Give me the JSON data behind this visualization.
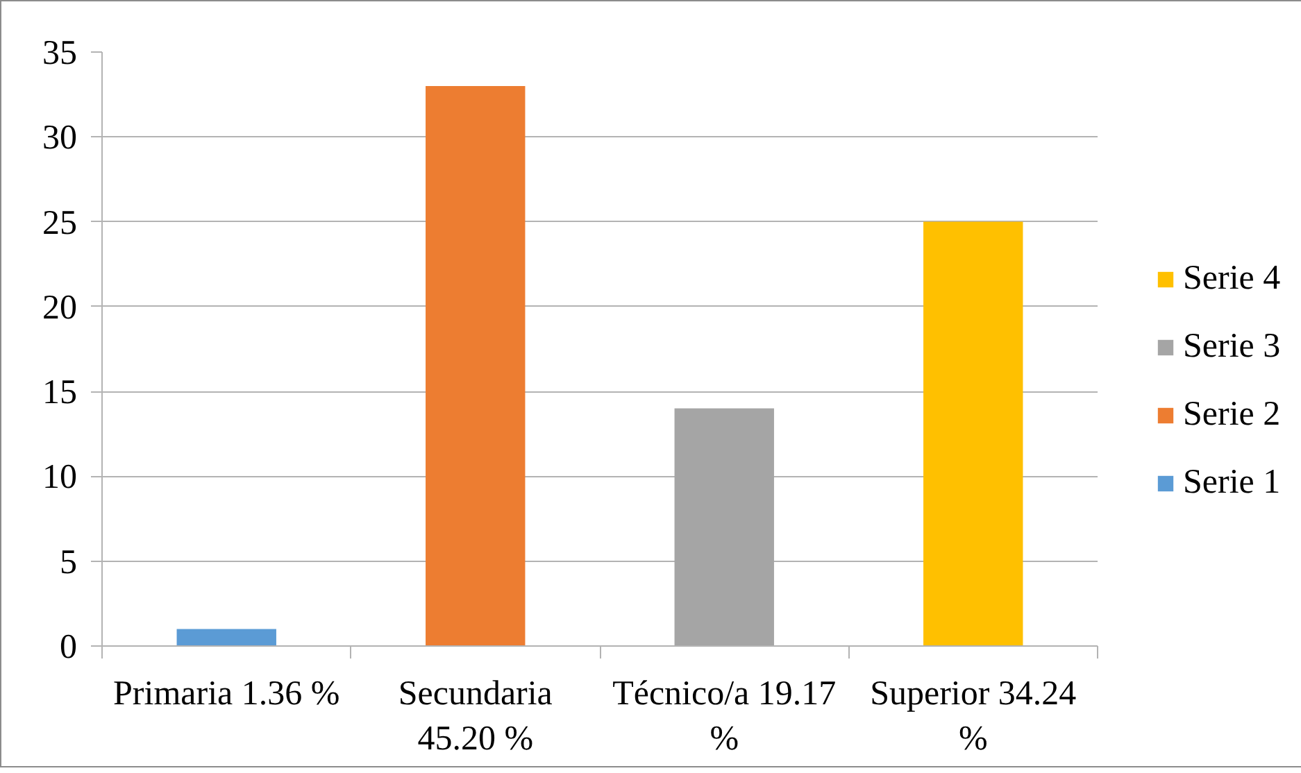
{
  "chart_data": {
    "type": "bar",
    "categories": [
      "Primaria 1.36 %",
      "Secundaria 45.20 %",
      "Técnico/a 19.17 %",
      "Superior 34.24 %"
    ],
    "series": [
      {
        "name": "Serie 1",
        "color": "#5b9bd5",
        "values": [
          1,
          null,
          null,
          null
        ]
      },
      {
        "name": "Serie 2",
        "color": "#ed7d31",
        "values": [
          null,
          33,
          null,
          null
        ]
      },
      {
        "name": "Serie 3",
        "color": "#a5a5a5",
        "values": [
          null,
          null,
          14,
          null
        ]
      },
      {
        "name": "Serie 4",
        "color": "#ffc000",
        "values": [
          null,
          null,
          null,
          25
        ]
      }
    ],
    "stacked": true,
    "ylim": [
      0,
      35
    ],
    "yticks": [
      0,
      5,
      10,
      15,
      20,
      25,
      30,
      35
    ],
    "grid": "y",
    "legend": "right"
  }
}
